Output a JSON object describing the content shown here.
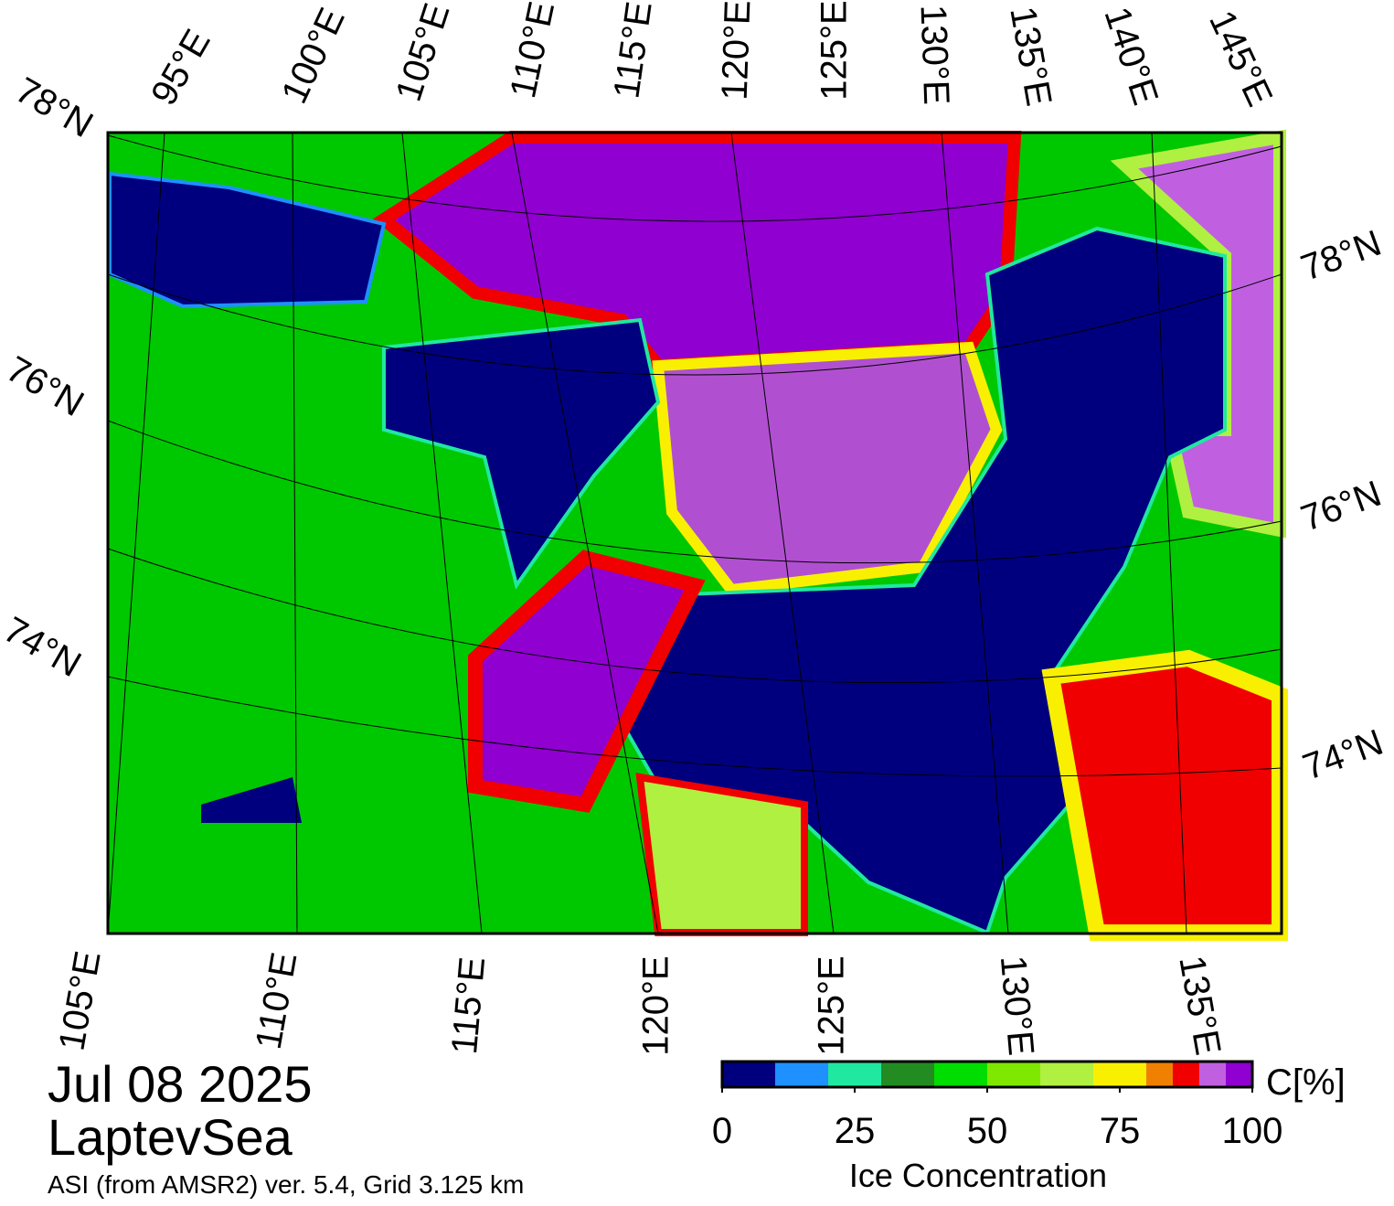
{
  "map": {
    "date": "Jul 08 2025",
    "region": "LaptevSea",
    "source": "ASI (from AMSR2) ver. 5.4,  Grid 3.125 km",
    "graticule_labels": {
      "top": [
        "95°E",
        "100°E",
        "105°E",
        "110°E",
        "115°E",
        "120°E",
        "125°E",
        "130°E",
        "135°E",
        "140°E",
        "145°E"
      ],
      "left": [
        "78°N",
        "76°N",
        "74°N"
      ],
      "right": [
        "78°N",
        "76°N",
        "74°N"
      ],
      "bottom": [
        "105°E",
        "110°E",
        "115°E",
        "120°E",
        "125°E",
        "130°E",
        "135°E"
      ]
    },
    "colorbar": {
      "title": "Ice Concentration",
      "unit_label": "C[%]",
      "lim": [
        0,
        100
      ],
      "ticks": [
        0,
        25,
        50,
        75,
        100
      ],
      "bounds": [
        0,
        10,
        20,
        30,
        40,
        50,
        60,
        70,
        80,
        85,
        90,
        95,
        100
      ],
      "colors": [
        "#00007f",
        "#1e90ff",
        "#20e8a0",
        "#228b22",
        "#00dd00",
        "#7fe800",
        "#b0f040",
        "#f8f000",
        "#f08000",
        "#f00000",
        "#c060e0",
        "#9000d0"
      ]
    }
  }
}
